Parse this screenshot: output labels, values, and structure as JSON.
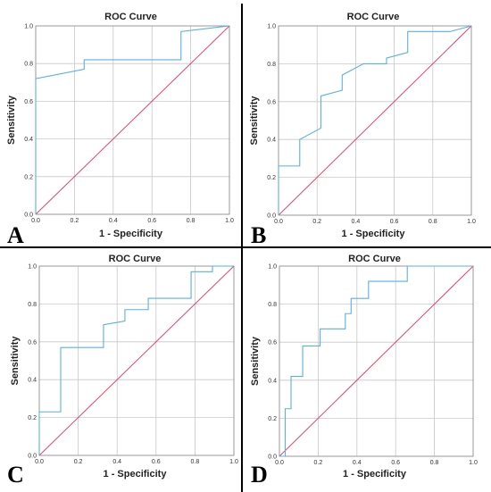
{
  "chart_data": [
    {
      "type": "line",
      "panel": "A",
      "title": "ROC Curve",
      "xlabel": "1 - Specificity",
      "ylabel": "Sensitivity",
      "xlim": [
        0,
        1
      ],
      "ylim": [
        0,
        1
      ],
      "xticks": [
        "0.0",
        "0.2",
        "0.4",
        "0.6",
        "0.8",
        "1.0"
      ],
      "yticks": [
        "0.0",
        "0.2",
        "0.4",
        "0.6",
        "0.8",
        "1.0"
      ],
      "grid": true,
      "colors": {
        "curve": "#5ab0e2",
        "reference": "#e8436a"
      },
      "series": [
        {
          "x": [
            0,
            0,
            0.25,
            0.25,
            0.75,
            0.75,
            1.0
          ],
          "y": [
            0,
            0.72,
            0.77,
            0.82,
            0.82,
            0.97,
            1.0
          ]
        },
        {
          "x": [
            0,
            1
          ],
          "y": [
            0,
            1
          ]
        }
      ]
    },
    {
      "type": "line",
      "panel": "B",
      "title": "ROC Curve",
      "xlabel": "1 - Specificity",
      "ylabel": "Sensitivity",
      "xlim": [
        0,
        1
      ],
      "ylim": [
        0,
        1
      ],
      "xticks": [
        "0.0",
        "0.2",
        "0.4",
        "0.6",
        "0.8",
        "1.0"
      ],
      "yticks": [
        "0.0",
        "0.2",
        "0.4",
        "0.6",
        "0.8",
        "1.0"
      ],
      "grid": true,
      "colors": {
        "curve": "#5ab0e2",
        "reference": "#e8436a"
      },
      "series": [
        {
          "x": [
            0,
            0,
            0.11,
            0.11,
            0.22,
            0.22,
            0.33,
            0.33,
            0.44,
            0.56,
            0.56,
            0.67,
            0.67,
            0.89,
            1.0
          ],
          "y": [
            0,
            0.26,
            0.26,
            0.4,
            0.46,
            0.63,
            0.66,
            0.74,
            0.8,
            0.8,
            0.83,
            0.86,
            0.97,
            0.97,
            1.0
          ]
        },
        {
          "x": [
            0,
            1
          ],
          "y": [
            0,
            1
          ]
        }
      ]
    },
    {
      "type": "line",
      "panel": "C",
      "title": "ROC Curve",
      "xlabel": "1 - Specificity",
      "ylabel": "Sensitivity",
      "xlim": [
        0,
        1
      ],
      "ylim": [
        0,
        1
      ],
      "xticks": [
        "0.0",
        "0.2",
        "0.4",
        "0.6",
        "0.8",
        "1.0"
      ],
      "yticks": [
        "0.0",
        "0.2",
        "0.4",
        "0.6",
        "0.8",
        "1.0"
      ],
      "grid": true,
      "colors": {
        "curve": "#5ab0e2",
        "reference": "#e8436a"
      },
      "series": [
        {
          "x": [
            0,
            0,
            0.11,
            0.11,
            0.33,
            0.33,
            0.44,
            0.44,
            0.56,
            0.56,
            0.78,
            0.78,
            0.89,
            0.89,
            1.0
          ],
          "y": [
            0,
            0.23,
            0.23,
            0.57,
            0.57,
            0.69,
            0.71,
            0.77,
            0.77,
            0.83,
            0.83,
            0.97,
            0.97,
            1.0,
            1.0
          ]
        },
        {
          "x": [
            0,
            1
          ],
          "y": [
            0,
            1
          ]
        }
      ]
    },
    {
      "type": "line",
      "panel": "D",
      "title": "ROC Curve",
      "xlabel": "1 - Specificity",
      "ylabel": "Sensitivity",
      "xlim": [
        0,
        1
      ],
      "ylim": [
        0,
        1
      ],
      "xticks": [
        "0.0",
        "0.2",
        "0.4",
        "0.6",
        "0.8",
        "1.0"
      ],
      "yticks": [
        "0.0",
        "0.2",
        "0.4",
        "0.6",
        "0.8",
        "1.0"
      ],
      "grid": true,
      "colors": {
        "curve": "#5ab0e2",
        "reference": "#e8436a"
      },
      "series": [
        {
          "x": [
            0,
            0.03,
            0.03,
            0.06,
            0.06,
            0.12,
            0.12,
            0.21,
            0.21,
            0.34,
            0.34,
            0.37,
            0.37,
            0.46,
            0.46,
            0.66,
            0.66,
            1.0
          ],
          "y": [
            0,
            0,
            0.25,
            0.25,
            0.42,
            0.42,
            0.58,
            0.58,
            0.67,
            0.67,
            0.75,
            0.75,
            0.83,
            0.83,
            0.92,
            0.92,
            1.0,
            1.0
          ]
        },
        {
          "x": [
            0,
            1
          ],
          "y": [
            0,
            1
          ]
        }
      ]
    }
  ]
}
